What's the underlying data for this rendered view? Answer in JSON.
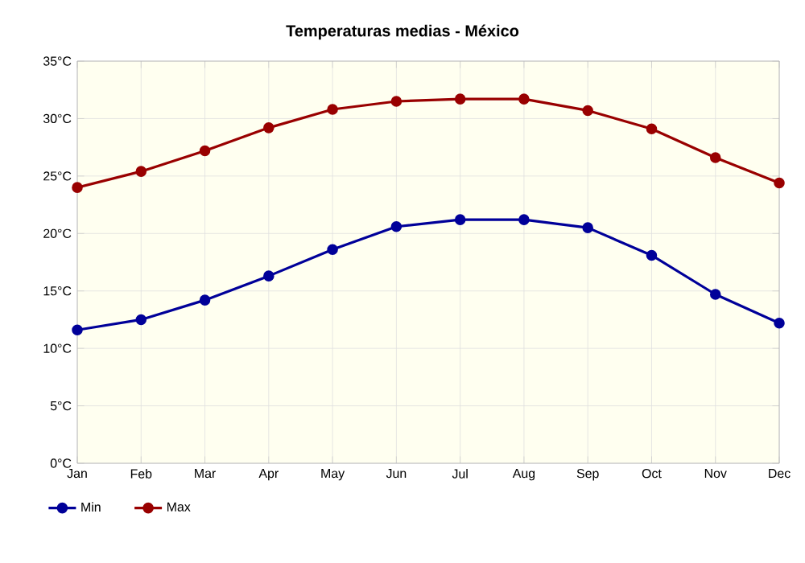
{
  "chart_data": {
    "type": "line",
    "title": "Temperaturas medias - México",
    "categories": [
      "Jan",
      "Feb",
      "Mar",
      "Apr",
      "May",
      "Jun",
      "Jul",
      "Aug",
      "Sep",
      "Oct",
      "Nov",
      "Dec"
    ],
    "series": [
      {
        "name": "Min",
        "color": "#000099",
        "values": [
          11.6,
          12.5,
          14.2,
          16.3,
          18.6,
          20.6,
          21.2,
          21.2,
          20.5,
          18.1,
          14.7,
          12.2
        ]
      },
      {
        "name": "Max",
        "color": "#990000",
        "values": [
          24.0,
          25.4,
          27.2,
          29.2,
          30.8,
          31.5,
          31.7,
          31.7,
          30.7,
          29.1,
          26.6,
          24.4
        ]
      }
    ],
    "ylim": [
      0,
      35
    ],
    "yticks": [
      {
        "value": 0,
        "label": "0°C"
      },
      {
        "value": 5,
        "label": "5°C"
      },
      {
        "value": 10,
        "label": "10°C"
      },
      {
        "value": 15,
        "label": "15°C"
      },
      {
        "value": 20,
        "label": "20°C"
      },
      {
        "value": 25,
        "label": "25°C"
      },
      {
        "value": 30,
        "label": "30°C"
      },
      {
        "value": 35,
        "label": "35°C"
      }
    ],
    "grid": true,
    "legend": "bottom",
    "marker": "circle",
    "line_style": "solid"
  }
}
